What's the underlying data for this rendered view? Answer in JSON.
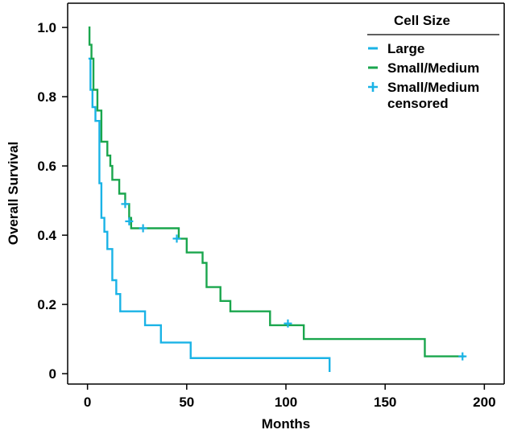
{
  "chart_data": {
    "type": "line",
    "subtype": "kaplan-meier step curves",
    "xlabel": "Months",
    "ylabel": "Overall Survival",
    "xlim": [
      -10,
      210
    ],
    "ylim": [
      -0.03,
      1.07
    ],
    "xticks": [
      0,
      50,
      100,
      150,
      200
    ],
    "yticks": [
      0,
      0.2,
      0.4,
      0.6,
      0.8,
      1.0
    ],
    "xtick_labels": [
      "0",
      "50",
      "100",
      "150",
      "200"
    ],
    "ytick_labels": [
      "0",
      "0.2",
      "0.4",
      "0.6",
      "0.8",
      "1.0"
    ],
    "grid": false,
    "legend": {
      "title": "Cell Size",
      "placement": "top-right",
      "entries": [
        {
          "label": "Large",
          "symbol": "line",
          "color": "#1ab3e6"
        },
        {
          "label": "Small/Medium",
          "symbol": "line",
          "color": "#1aa64d"
        },
        {
          "label": "Small/Medium\ncensored",
          "symbol": "plus",
          "color": "#1ab3e6"
        }
      ]
    },
    "series": [
      {
        "name": "Large",
        "color": "#1ab3e6",
        "steps": [
          [
            0.5,
            0.91
          ],
          [
            1.5,
            0.82
          ],
          [
            2.5,
            0.77
          ],
          [
            4,
            0.73
          ],
          [
            6,
            0.55
          ],
          [
            7,
            0.45
          ],
          [
            8.5,
            0.41
          ],
          [
            10,
            0.36
          ],
          [
            12.5,
            0.27
          ],
          [
            14.5,
            0.23
          ],
          [
            16.5,
            0.18
          ],
          [
            29,
            0.14
          ],
          [
            37,
            0.09
          ],
          [
            52,
            0.045
          ],
          [
            122,
            0.005
          ]
        ],
        "censored": []
      },
      {
        "name": "Small/Medium",
        "color": "#1aa64d",
        "steps": [
          [
            0.5,
            1.0
          ],
          [
            1,
            0.95
          ],
          [
            2,
            0.91
          ],
          [
            3,
            0.82
          ],
          [
            5,
            0.76
          ],
          [
            7,
            0.67
          ],
          [
            10,
            0.63
          ],
          [
            11.5,
            0.6
          ],
          [
            12.5,
            0.56
          ],
          [
            16,
            0.52
          ],
          [
            19,
            0.49
          ],
          [
            21,
            0.45
          ],
          [
            22,
            0.42
          ],
          [
            46,
            0.39
          ],
          [
            50,
            0.35
          ],
          [
            58,
            0.32
          ],
          [
            60,
            0.25
          ],
          [
            67,
            0.21
          ],
          [
            72,
            0.18
          ],
          [
            92,
            0.14
          ],
          [
            109,
            0.1
          ],
          [
            170,
            0.05
          ],
          [
            190,
            0.05
          ]
        ],
        "censored": [
          {
            "x": 19,
            "y": 0.49
          },
          {
            "x": 21,
            "y": 0.44
          },
          {
            "x": 28,
            "y": 0.42
          },
          {
            "x": 45,
            "y": 0.39
          },
          {
            "x": 101,
            "y": 0.145
          },
          {
            "x": 189,
            "y": 0.05
          }
        ]
      }
    ]
  }
}
